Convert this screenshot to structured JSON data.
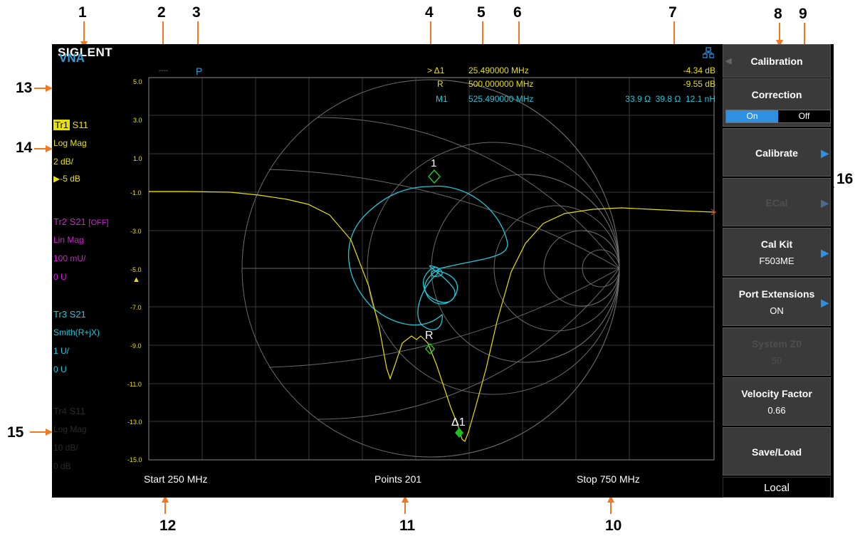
{
  "callouts": [
    "1",
    "2",
    "3",
    "4",
    "5",
    "6",
    "7",
    "8",
    "9",
    "10",
    "11",
    "12",
    "13",
    "14",
    "15",
    "16"
  ],
  "brand": "SIGLENT",
  "mode": "VNA",
  "status": {
    "indicator_2": "----",
    "indicator_3": "P"
  },
  "traces": [
    {
      "id": "Tr1",
      "param": "S11",
      "format": "Log Mag",
      "scale": "2 dB/",
      "ref": "▶-5 dB",
      "color": "#e8e000"
    },
    {
      "id": "Tr2",
      "param": "S21",
      "state": "[OFF]",
      "format": "Lin Mag",
      "scale": "100 mU/",
      "ref": "0 U",
      "color": "#d020d0"
    },
    {
      "id": "Tr3",
      "param": "S21",
      "format": "Smith(R+jX)",
      "scale": "1 U/",
      "ref": "0 U",
      "color": "#20c8d8"
    },
    {
      "id": "Tr4",
      "param": "S11",
      "format": "Log Mag",
      "scale": "10 dB/",
      "ref": "0 dB",
      "color": "#2a2a2a"
    }
  ],
  "y_axis": {
    "ticks": [
      "5.0",
      "3.0",
      "1.0",
      "-1.0",
      "-3.0",
      "-5.0",
      "-7.0",
      "-9.0",
      "-11.0",
      "-13.0",
      "-15.0"
    ],
    "ref_marker": "▲"
  },
  "markers": {
    "delta": {
      "label": "> Δ1",
      "freq": "25.490000 MHz",
      "value": "-4.34 dB"
    },
    "ref": {
      "label": "R",
      "freq": "500.000000 MHz",
      "value": "-9.55 dB"
    },
    "m1": {
      "label": "M1",
      "freq": "525.490000 MHz",
      "r": "33.9 Ω",
      "x": "39.8 Ω",
      "l": "12.1 nH"
    },
    "plot_labels": {
      "m1": "1",
      "ref": "R",
      "delta": "Δ1"
    }
  },
  "footer": {
    "start": "Start  250 MHz",
    "points": "Points  201",
    "stop": "Stop  750 MHz"
  },
  "menu": {
    "title": "Calibration",
    "correction": {
      "label": "Correction",
      "on": "On",
      "off": "Off",
      "selected": "On"
    },
    "items": [
      {
        "label": "Calibrate",
        "sub": "",
        "arrow": true,
        "disabled": false
      },
      {
        "label": "ECal",
        "sub": "",
        "arrow": true,
        "disabled": true
      },
      {
        "label": "Cal Kit",
        "sub": "F503ME",
        "arrow": true,
        "disabled": false
      },
      {
        "label": "Port Extensions",
        "sub": "ON",
        "arrow": true,
        "disabled": false
      },
      {
        "label": "System Z0",
        "sub": "50",
        "arrow": false,
        "disabled": true
      },
      {
        "label": "Velocity Factor",
        "sub": "0.66",
        "arrow": false,
        "disabled": false
      },
      {
        "label": "Save/Load",
        "sub": "",
        "arrow": false,
        "disabled": false
      }
    ],
    "local": "Local"
  },
  "colors": {
    "accent": "#2f8fe0",
    "trace1": "#e8e000",
    "trace3": "#20c8d8",
    "marker": "#20c020",
    "callout_line": "#f07820"
  }
}
